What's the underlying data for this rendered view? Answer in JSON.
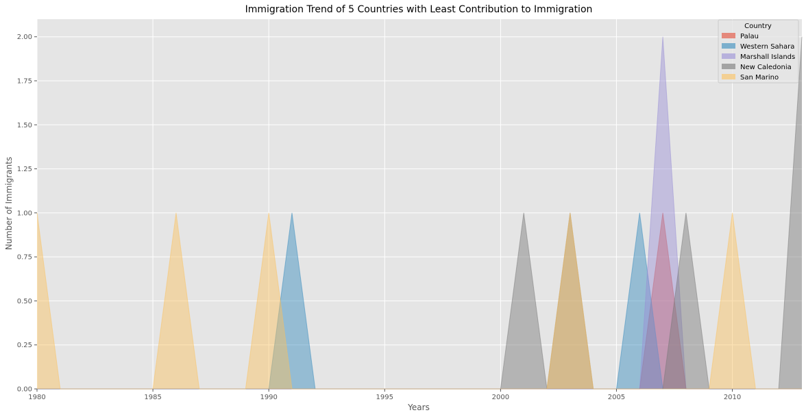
{
  "chart_data": {
    "type": "area",
    "title": "Immigration Trend of 5 Countries with Least Contribution to Immigration",
    "xlabel": "Years",
    "ylabel": "Number of Immigrants",
    "xlim": [
      1980,
      2013
    ],
    "ylim": [
      0,
      2.1
    ],
    "x_ticks": [
      1980,
      1985,
      1990,
      1995,
      2000,
      2005,
      2010
    ],
    "y_ticks": [
      "0.00",
      "0.25",
      "0.50",
      "0.75",
      "1.00",
      "1.25",
      "1.50",
      "1.75",
      "2.00"
    ],
    "grid": true,
    "stacked": false,
    "legend": {
      "title": "Country",
      "placement": "top-right"
    },
    "x": [
      1980,
      1981,
      1982,
      1983,
      1984,
      1985,
      1986,
      1987,
      1988,
      1989,
      1990,
      1991,
      1992,
      1993,
      1994,
      1995,
      1996,
      1997,
      1998,
      1999,
      2000,
      2001,
      2002,
      2003,
      2004,
      2005,
      2006,
      2007,
      2008,
      2009,
      2010,
      2011,
      2012,
      2013
    ],
    "series": [
      {
        "name": "Palau",
        "color": "#E24A33",
        "values": [
          0,
          0,
          0,
          0,
          0,
          0,
          0,
          0,
          0,
          0,
          0,
          0,
          0,
          0,
          0,
          0,
          0,
          0,
          0,
          0,
          0,
          0,
          0,
          0,
          0,
          0,
          0,
          1,
          0,
          0,
          0,
          0,
          0,
          0
        ]
      },
      {
        "name": "Western Sahara",
        "color": "#348ABD",
        "values": [
          0,
          0,
          0,
          0,
          0,
          0,
          0,
          0,
          0,
          0,
          0,
          1,
          0,
          0,
          0,
          0,
          0,
          0,
          0,
          0,
          0,
          0,
          0,
          0,
          0,
          0,
          1,
          0,
          0,
          0,
          0,
          0,
          0,
          0
        ]
      },
      {
        "name": "Marshall Islands",
        "color": "#988ED5",
        "values": [
          0,
          0,
          0,
          0,
          0,
          0,
          0,
          0,
          0,
          0,
          0,
          0,
          0,
          0,
          0,
          0,
          0,
          0,
          0,
          0,
          0,
          0,
          0,
          0,
          0,
          0,
          0,
          2,
          0,
          0,
          0,
          0,
          0,
          0
        ]
      },
      {
        "name": "New Caledonia",
        "color": "#777777",
        "values": [
          0,
          0,
          0,
          0,
          0,
          0,
          0,
          0,
          0,
          0,
          0,
          0,
          0,
          0,
          0,
          0,
          0,
          0,
          0,
          0,
          0,
          1,
          0,
          1,
          0,
          0,
          0,
          0,
          1,
          0,
          0,
          0,
          0,
          2
        ]
      },
      {
        "name": "San Marino",
        "color": "#FBC15E",
        "values": [
          1,
          0,
          0,
          0,
          0,
          0,
          1,
          0,
          0,
          0,
          1,
          0,
          0,
          0,
          0,
          0,
          0,
          0,
          0,
          0,
          0,
          0,
          0,
          1,
          0,
          0,
          0,
          0,
          0,
          0,
          1,
          0,
          0,
          0
        ]
      }
    ]
  }
}
